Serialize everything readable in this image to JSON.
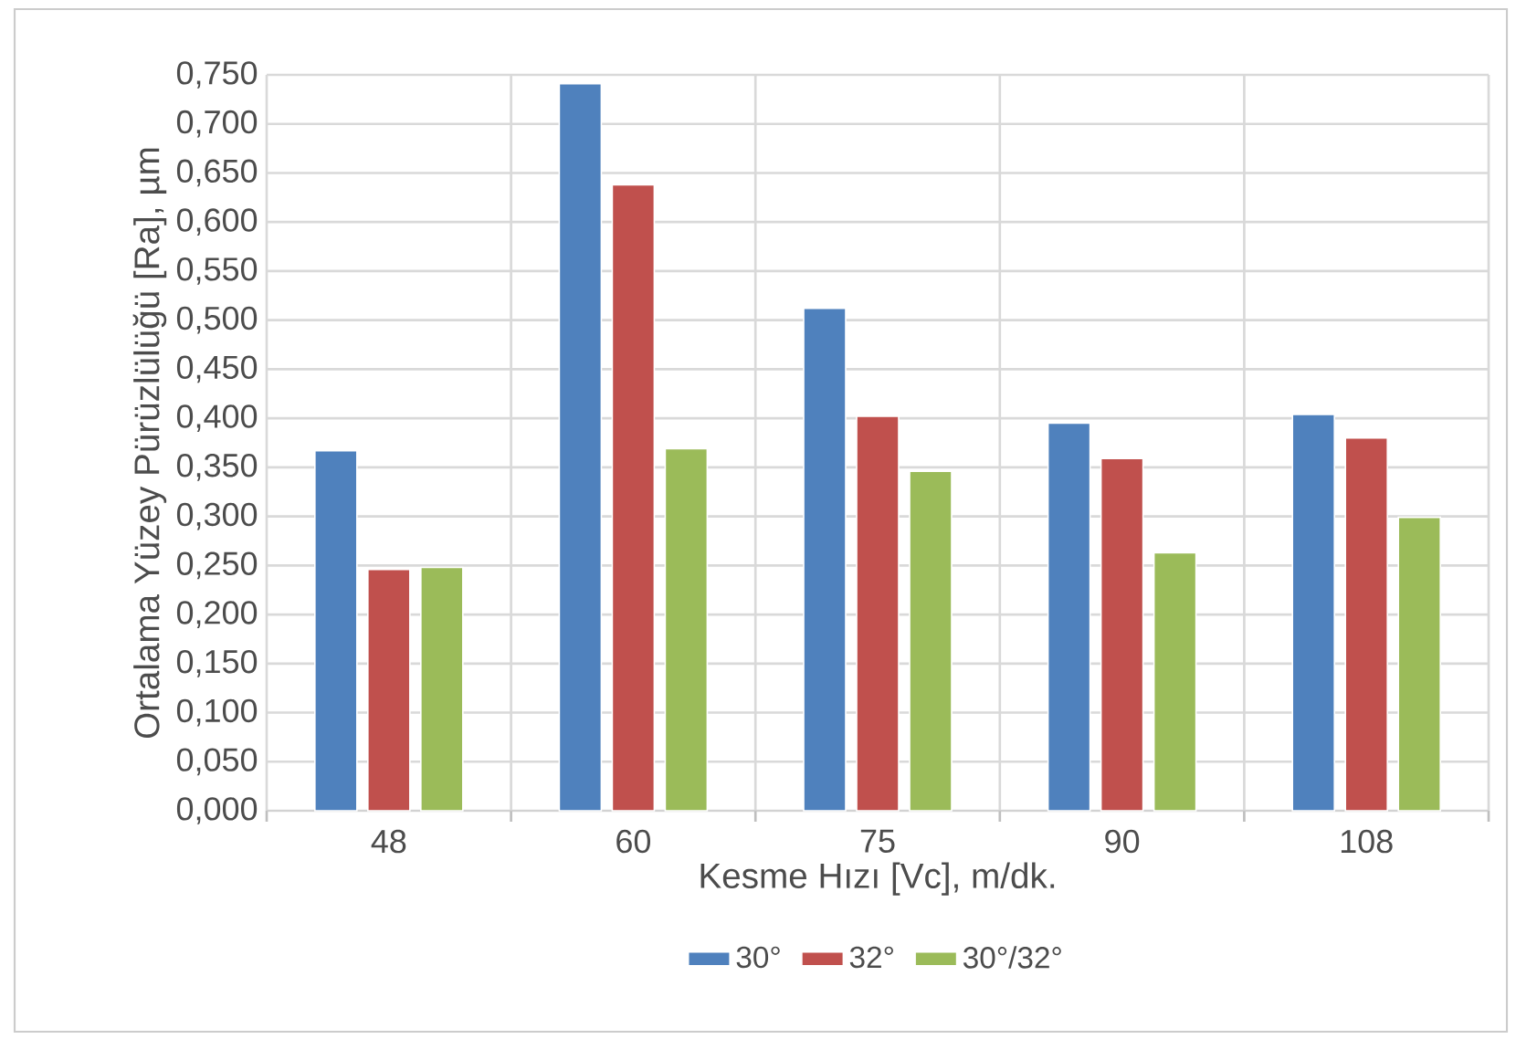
{
  "chart_data": {
    "type": "bar",
    "categories": [
      "48",
      "60",
      "75",
      "90",
      "108"
    ],
    "xlabel": "Kesme Hızı [Vc], m/dk.",
    "ylabel": "Ortalama Yüzey Pürüzlülüğü [Ra], µm",
    "series": [
      {
        "name": "30°",
        "color": "#4f81bd",
        "values": [
          0.367,
          0.741,
          0.512,
          0.395,
          0.404
        ]
      },
      {
        "name": "32°",
        "color": "#c0504d",
        "values": [
          0.246,
          0.638,
          0.402,
          0.359,
          0.38
        ]
      },
      {
        "name": "30°/32°",
        "color": "#9bbb59",
        "values": [
          0.248,
          0.369,
          0.346,
          0.263,
          0.299
        ]
      }
    ],
    "ylim": [
      0,
      0.75
    ],
    "yticks": [
      {
        "value": 0,
        "label": "0,000"
      },
      {
        "value": 0.05,
        "label": "0,050"
      },
      {
        "value": 0.1,
        "label": "0,100"
      },
      {
        "value": 0.15,
        "label": "0,150"
      },
      {
        "value": 0.2,
        "label": "0,200"
      },
      {
        "value": 0.25,
        "label": "0,250"
      },
      {
        "value": 0.3,
        "label": "0,300"
      },
      {
        "value": 0.35,
        "label": "0,350"
      },
      {
        "value": 0.4,
        "label": "0,400"
      },
      {
        "value": 0.45,
        "label": "0,450"
      },
      {
        "value": 0.5,
        "label": "0,500"
      },
      {
        "value": 0.55,
        "label": "0,550"
      },
      {
        "value": 0.6,
        "label": "0,600"
      },
      {
        "value": 0.65,
        "label": "0,650"
      },
      {
        "value": 0.7,
        "label": "0,700"
      },
      {
        "value": 0.75,
        "label": "0,750"
      }
    ],
    "grid": true,
    "legend": "bottom"
  }
}
